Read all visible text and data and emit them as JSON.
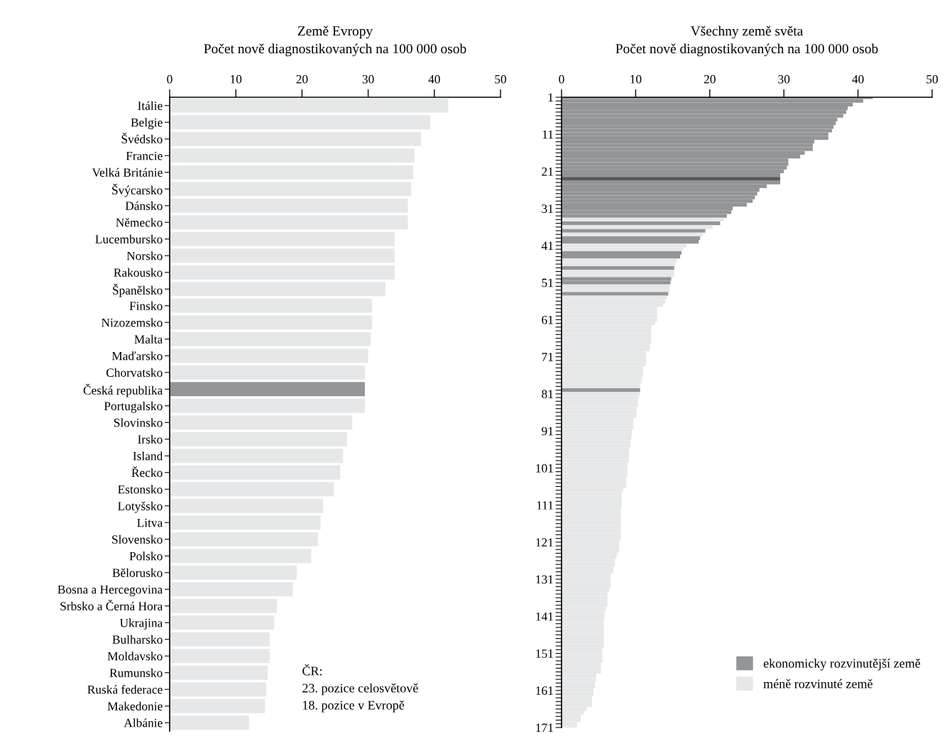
{
  "chart_data": [
    {
      "type": "bar",
      "orientation": "horizontal",
      "title": "Země Evropy",
      "subtitle": "Počet nově diagnostikovaných na 100 000 osob",
      "categories": [
        "Itálie",
        "Belgie",
        "Švédsko",
        "Francie",
        "Velká Británie",
        "Švýcarsko",
        "Dánsko",
        "Německo",
        "Lucembursko",
        "Norsko",
        "Rakousko",
        "Španělsko",
        "Finsko",
        "Nizozemsko",
        "Malta",
        "Maďarsko",
        "Chorvatsko",
        "Česká republika",
        "Portugalsko",
        "Slovinsko",
        "Irsko",
        "Island",
        "Řecko",
        "Estonsko",
        "Lotyšsko",
        "Litva",
        "Slovensko",
        "Polsko",
        "Bělorusko",
        "Bosna a Hercegovina",
        "Srbsko a Černá Hora",
        "Ukrajina",
        "Bulharsko",
        "Moldavsko",
        "Rumunsko",
        "Ruská federace",
        "Makedonie",
        "Albánie"
      ],
      "values": [
        42.1,
        39.4,
        38.0,
        37.0,
        36.8,
        36.5,
        36.0,
        36.0,
        34.0,
        34.0,
        34.0,
        32.6,
        30.6,
        30.6,
        30.4,
        30.0,
        29.5,
        29.5,
        29.5,
        27.6,
        26.8,
        26.2,
        25.8,
        24.8,
        23.2,
        22.8,
        22.4,
        21.4,
        19.2,
        18.6,
        16.2,
        15.8,
        15.1,
        15.1,
        14.8,
        14.6,
        14.4,
        12.0
      ],
      "colors": [
        "#e6e7e8",
        "#e6e7e8",
        "#e6e7e8",
        "#e6e7e8",
        "#e6e7e8",
        "#e6e7e8",
        "#e6e7e8",
        "#e6e7e8",
        "#e6e7e8",
        "#e6e7e8",
        "#e6e7e8",
        "#e6e7e8",
        "#e6e7e8",
        "#e6e7e8",
        "#e6e7e8",
        "#e6e7e8",
        "#e6e7e8",
        "#939598",
        "#e6e7e8",
        "#e6e7e8",
        "#e6e7e8",
        "#e6e7e8",
        "#e6e7e8",
        "#e6e7e8",
        "#e6e7e8",
        "#e6e7e8",
        "#e6e7e8",
        "#e6e7e8",
        "#e6e7e8",
        "#e6e7e8",
        "#e6e7e8",
        "#e6e7e8",
        "#e6e7e8",
        "#e6e7e8",
        "#e6e7e8",
        "#e6e7e8",
        "#e6e7e8",
        "#e6e7e8"
      ],
      "xlim": [
        0,
        50
      ],
      "xticks": [
        0,
        10,
        20,
        30,
        40,
        50
      ],
      "annotations": [
        "ČR:",
        "23. pozice celosvětově",
        "18. pozice v Evropě"
      ]
    },
    {
      "type": "bar",
      "orientation": "horizontal",
      "title": "Všechny země světa",
      "subtitle": "Počet nově diagnostikovaných na 100 000 osob",
      "series": [
        {
          "name": "ekonomicky rozvinutější země",
          "color": "#939598",
          "x": [
            1,
            2,
            3,
            4,
            5,
            6,
            7,
            8,
            9,
            10,
            11,
            12,
            13,
            14,
            15,
            16,
            17,
            18,
            19,
            20,
            21,
            22,
            24,
            25,
            26,
            27,
            28,
            29,
            30,
            31,
            32,
            33,
            35,
            37,
            39,
            40,
            43,
            44,
            47,
            50,
            51,
            54,
            80
          ],
          "values": [
            42.0,
            40.7,
            39.3,
            38.6,
            38.4,
            38.0,
            37.2,
            37.0,
            36.7,
            36.5,
            36.0,
            36.0,
            34.1,
            33.9,
            33.9,
            32.8,
            32.2,
            30.6,
            30.6,
            30.4,
            30.0,
            29.5,
            29.5,
            27.7,
            26.7,
            26.4,
            26.1,
            25.8,
            25.0,
            23.1,
            22.9,
            22.3,
            21.4,
            19.4,
            18.7,
            18.5,
            16.2,
            16.0,
            15.2,
            14.8,
            14.7,
            14.4,
            10.6
          ]
        },
        {
          "name": "méně rozvinuté země",
          "color": "#e6e7e8",
          "x": [
            34,
            36,
            38,
            41,
            42,
            45,
            46,
            48,
            49,
            52,
            53,
            55,
            56,
            57,
            58,
            59,
            60,
            61,
            62,
            63,
            64,
            65,
            66,
            67,
            68,
            69,
            70,
            71,
            72,
            73,
            74,
            75,
            76,
            77,
            78,
            79,
            81,
            82,
            83,
            84,
            85,
            86,
            87,
            88,
            89,
            90,
            91,
            92,
            93,
            94,
            95,
            96,
            97,
            98,
            99,
            100,
            101,
            102,
            103,
            104,
            105,
            106,
            107,
            108,
            109,
            110,
            111,
            112,
            113,
            114,
            115,
            116,
            117,
            118,
            119,
            120,
            121,
            122,
            123,
            124,
            125,
            126,
            127,
            128,
            129,
            130,
            131,
            132,
            133,
            134,
            135,
            136,
            137,
            138,
            139,
            140,
            141,
            142,
            143,
            144,
            145,
            146,
            147,
            148,
            149,
            150,
            151,
            152,
            153,
            154,
            155,
            156,
            157,
            158,
            159,
            160,
            161,
            162,
            163,
            164,
            165,
            166,
            167,
            168,
            169,
            170,
            171
          ],
          "values": [
            21.9,
            20.4,
            19.1,
            16.9,
            16.4,
            15.6,
            15.4,
            15.2,
            15.2,
            14.6,
            14.6,
            14.2,
            14.0,
            13.7,
            12.9,
            12.9,
            12.9,
            12.9,
            12.6,
            12.1,
            12.1,
            12.1,
            12.1,
            12.1,
            11.9,
            11.9,
            11.4,
            11.4,
            11.4,
            11.4,
            11.0,
            11.0,
            11.0,
            10.8,
            10.7,
            10.6,
            10.6,
            10.4,
            10.3,
            10.3,
            10.1,
            10.1,
            10.1,
            9.7,
            9.7,
            9.7,
            9.5,
            9.5,
            9.4,
            9.3,
            9.3,
            9.1,
            9.1,
            9.1,
            9.1,
            8.9,
            8.9,
            8.9,
            8.9,
            8.7,
            8.7,
            8.7,
            8.3,
            8.1,
            8.1,
            8.1,
            8.1,
            8.0,
            8.0,
            8.0,
            8.0,
            8.0,
            8.0,
            8.0,
            8.0,
            8.0,
            7.8,
            7.8,
            7.8,
            7.6,
            7.4,
            7.2,
            7.2,
            7.0,
            7.0,
            6.6,
            6.6,
            6.6,
            6.6,
            6.4,
            6.2,
            6.2,
            6.2,
            6.2,
            6.0,
            5.8,
            5.8,
            5.7,
            5.7,
            5.7,
            5.7,
            5.7,
            5.7,
            5.7,
            5.7,
            5.5,
            5.5,
            5.5,
            5.5,
            5.3,
            5.3,
            5.3,
            4.7,
            4.7,
            4.5,
            4.5,
            4.3,
            4.3,
            4.1,
            4.1,
            4.1,
            3.4,
            3.0,
            2.6,
            2.6,
            2.1,
            2.1
          ]
        },
        {
          "color": "#58595b",
          "x": [
            23
          ],
          "values": [
            29.5
          ]
        }
      ],
      "xlim": [
        0,
        50
      ],
      "xticks": [
        0,
        10,
        20,
        30,
        40,
        50
      ],
      "ylim": [
        171,
        1
      ],
      "yticks": [
        1,
        {
          "value": 2,
          "label": null
        },
        {
          "value": 3,
          "label": null
        },
        {
          "value": 4,
          "label": null
        },
        {
          "value": 5,
          "label": null
        },
        {
          "value": 6,
          "label": null
        },
        {
          "value": 7,
          "label": null
        },
        {
          "value": 8,
          "label": null
        },
        {
          "value": 9,
          "label": null
        },
        {
          "value": 10,
          "label": null
        },
        11,
        {
          "value": 12,
          "label": null
        },
        {
          "value": 13,
          "label": null
        },
        {
          "value": 14,
          "label": null
        },
        {
          "value": 15,
          "label": null
        },
        {
          "value": 16,
          "label": null
        },
        {
          "value": 17,
          "label": null
        },
        {
          "value": 18,
          "label": null
        },
        {
          "value": 19,
          "label": null
        },
        {
          "value": 20,
          "label": null
        },
        21,
        {
          "value": 22,
          "label": null
        },
        {
          "value": 23,
          "label": null
        },
        {
          "value": 24,
          "label": null
        },
        {
          "value": 25,
          "label": null
        },
        {
          "value": 26,
          "label": null
        },
        {
          "value": 27,
          "label": null
        },
        {
          "value": 28,
          "label": null
        },
        {
          "value": 29,
          "label": null
        },
        {
          "value": 30,
          "label": null
        },
        31,
        {
          "value": 32,
          "label": null
        },
        {
          "value": 33,
          "label": null
        },
        {
          "value": 34,
          "label": null
        },
        {
          "value": 35,
          "label": null
        },
        {
          "value": 36,
          "label": null
        },
        {
          "value": 37,
          "label": null
        },
        {
          "value": 38,
          "label": null
        },
        {
          "value": 39,
          "label": null
        },
        {
          "value": 40,
          "label": null
        },
        41,
        {
          "value": 42,
          "label": null
        },
        {
          "value": 43,
          "label": null
        },
        {
          "value": 44,
          "label": null
        },
        {
          "value": 45,
          "label": null
        },
        {
          "value": 46,
          "label": null
        },
        {
          "value": 47,
          "label": null
        },
        {
          "value": 48,
          "label": null
        },
        {
          "value": 49,
          "label": null
        },
        {
          "value": 50,
          "label": null
        },
        51,
        {
          "value": 52,
          "label": null
        },
        {
          "value": 53,
          "label": null
        },
        {
          "value": 54,
          "label": null
        },
        {
          "value": 55,
          "label": null
        },
        {
          "value": 56,
          "label": null
        },
        {
          "value": 57,
          "label": null
        },
        {
          "value": 58,
          "label": null
        },
        {
          "value": 59,
          "label": null
        },
        {
          "value": 60,
          "label": null
        },
        61,
        {
          "value": 62,
          "label": null
        },
        {
          "value": 63,
          "label": null
        },
        {
          "value": 64,
          "label": null
        },
        {
          "value": 65,
          "label": null
        },
        {
          "value": 66,
          "label": null
        },
        {
          "value": 67,
          "label": null
        },
        {
          "value": 68,
          "label": null
        },
        {
          "value": 69,
          "label": null
        },
        {
          "value": 70,
          "label": null
        },
        71,
        {
          "value": 72,
          "label": null
        },
        {
          "value": 73,
          "label": null
        },
        {
          "value": 74,
          "label": null
        },
        {
          "value": 75,
          "label": null
        },
        {
          "value": 76,
          "label": null
        },
        {
          "value": 77,
          "label": null
        },
        {
          "value": 78,
          "label": null
        },
        {
          "value": 79,
          "label": null
        },
        {
          "value": 80,
          "label": null
        },
        81,
        {
          "value": 82,
          "label": null
        },
        {
          "value": 83,
          "label": null
        },
        {
          "value": 84,
          "label": null
        },
        {
          "value": 85,
          "label": null
        },
        {
          "value": 86,
          "label": null
        },
        {
          "value": 87,
          "label": null
        },
        {
          "value": 88,
          "label": null
        },
        {
          "value": 89,
          "label": null
        },
        {
          "value": 90,
          "label": null
        },
        91,
        {
          "value": 92,
          "label": null
        },
        {
          "value": 93,
          "label": null
        },
        {
          "value": 94,
          "label": null
        },
        {
          "value": 95,
          "label": null
        },
        {
          "value": 96,
          "label": null
        },
        {
          "value": 97,
          "label": null
        },
        {
          "value": 98,
          "label": null
        },
        {
          "value": 99,
          "label": null
        },
        {
          "value": 100,
          "label": null
        },
        101,
        {
          "value": 102,
          "label": null
        },
        {
          "value": 103,
          "label": null
        },
        {
          "value": 104,
          "label": null
        },
        {
          "value": 105,
          "label": null
        },
        {
          "value": 106,
          "label": null
        },
        {
          "value": 107,
          "label": null
        },
        {
          "value": 108,
          "label": null
        },
        {
          "value": 109,
          "label": null
        },
        {
          "value": 110,
          "label": null
        },
        111,
        {
          "value": 112,
          "label": null
        },
        {
          "value": 113,
          "label": null
        },
        {
          "value": 114,
          "label": null
        },
        {
          "value": 115,
          "label": null
        },
        {
          "value": 116,
          "label": null
        },
        {
          "value": 117,
          "label": null
        },
        {
          "value": 118,
          "label": null
        },
        {
          "value": 119,
          "label": null
        },
        {
          "value": 120,
          "label": null
        },
        121,
        {
          "value": 122,
          "label": null
        },
        {
          "value": 123,
          "label": null
        },
        {
          "value": 124,
          "label": null
        },
        {
          "value": 125,
          "label": null
        },
        {
          "value": 126,
          "label": null
        },
        {
          "value": 127,
          "label": null
        },
        {
          "value": 128,
          "label": null
        },
        {
          "value": 129,
          "label": null
        },
        {
          "value": 130,
          "label": null
        },
        131,
        {
          "value": 132,
          "label": null
        },
        {
          "value": 133,
          "label": null
        },
        {
          "value": 134,
          "label": null
        },
        {
          "value": 135,
          "label": null
        },
        {
          "value": 136,
          "label": null
        },
        {
          "value": 137,
          "label": null
        },
        {
          "value": 138,
          "label": null
        },
        {
          "value": 139,
          "label": null
        },
        {
          "value": 140,
          "label": null
        },
        141,
        {
          "value": 142,
          "label": null
        },
        {
          "value": 143,
          "label": null
        },
        {
          "value": 144,
          "label": null
        },
        {
          "value": 145,
          "label": null
        },
        {
          "value": 146,
          "label": null
        },
        {
          "value": 147,
          "label": null
        },
        {
          "value": 148,
          "label": null
        },
        {
          "value": 149,
          "label": null
        },
        {
          "value": 150,
          "label": null
        },
        151,
        {
          "value": 152,
          "label": null
        },
        {
          "value": 153,
          "label": null
        },
        {
          "value": 154,
          "label": null
        },
        {
          "value": 155,
          "label": null
        },
        {
          "value": 156,
          "label": null
        },
        {
          "value": 157,
          "label": null
        },
        {
          "value": 158,
          "label": null
        },
        {
          "value": 159,
          "label": null
        },
        {
          "value": 160,
          "label": null
        },
        161,
        {
          "value": 162,
          "label": null
        },
        {
          "value": 163,
          "label": null
        },
        {
          "value": 164,
          "label": null
        },
        {
          "value": 165,
          "label": null
        },
        {
          "value": 166,
          "label": null
        },
        {
          "value": 167,
          "label": null
        },
        {
          "value": 168,
          "label": null
        },
        {
          "value": 169,
          "label": null
        },
        {
          "value": 170,
          "label": null
        },
        171
      ],
      "legend": "bottom right"
    }
  ]
}
